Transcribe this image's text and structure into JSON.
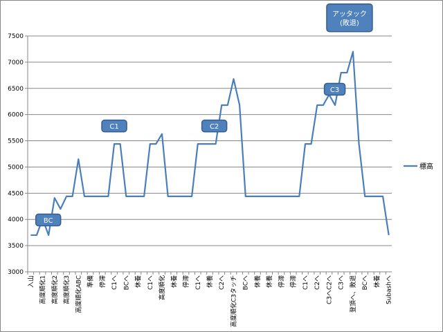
{
  "chart_data": {
    "type": "line",
    "ylim": [
      3000,
      7500
    ],
    "yticks": [
      3000,
      3500,
      4000,
      4500,
      5000,
      5500,
      6000,
      6500,
      7000,
      7500
    ],
    "grid": "horizontal",
    "legend_position": "right",
    "line_color": "#4a7ebb",
    "callout_color": "#4f81bd",
    "callout_border": "#385d8a",
    "categories": [
      "入山",
      "",
      "高度順化1",
      "",
      "高度順化2",
      "",
      "高度順化3",
      "",
      "高度順化ABC",
      "",
      "準備",
      "",
      "停滞",
      "",
      "C1へ",
      "",
      "BCへ",
      "",
      "休養",
      "",
      "C1へ",
      "",
      "高度順化",
      "",
      "休養",
      "",
      "停滞",
      "",
      "C1へ",
      "",
      "休養",
      "",
      "C2へ",
      "",
      "高度順化C3タッチ",
      "",
      "BCへ",
      "",
      "休養",
      "",
      "休養",
      "",
      "停滞",
      "",
      "停滞",
      "",
      "C1へ",
      "",
      "C2へ",
      "",
      "C3へC2へ",
      "",
      "C3へ",
      "",
      "登頂へ、敗退",
      "",
      "BCへ",
      "",
      "休養",
      "",
      "Subashへ"
    ],
    "series": [
      {
        "name": "標高",
        "values": [
          3700,
          3700,
          4010,
          3700,
          4410,
          4200,
          4440,
          4440,
          5150,
          4440,
          4440,
          4440,
          4440,
          4440,
          5440,
          5440,
          4440,
          4440,
          4440,
          4440,
          5440,
          5440,
          5630,
          4440,
          4440,
          4440,
          4440,
          4440,
          5440,
          5440,
          5440,
          5440,
          6180,
          6180,
          6680,
          6180,
          4440,
          4440,
          4440,
          4440,
          4440,
          4440,
          4440,
          4440,
          4440,
          4440,
          5440,
          5440,
          6180,
          6180,
          6380,
          6180,
          6800,
          6800,
          7200,
          5440,
          4440,
          4440,
          4440,
          4440,
          3700
        ]
      }
    ],
    "annotations": [
      {
        "label": "BC",
        "index": 3
      },
      {
        "label": "C1",
        "index": 14
      },
      {
        "label": "C2",
        "index": 31
      },
      {
        "label": "C3",
        "index": 51
      },
      {
        "label": "アッタック\n(敗退)",
        "index": 54
      }
    ]
  }
}
